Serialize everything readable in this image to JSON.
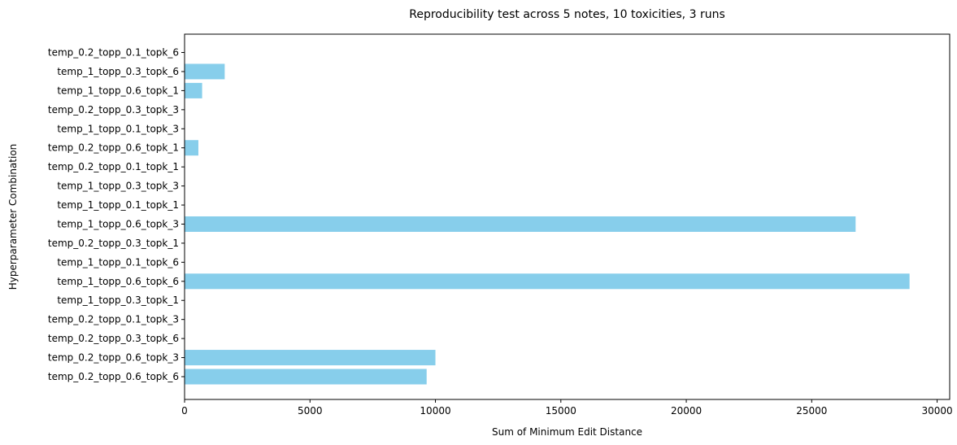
{
  "chart_data": {
    "type": "bar",
    "orientation": "horizontal",
    "title": "Reproducibility test across 5 notes, 10 toxicities, 3 runs",
    "xlabel": "Sum of Minimum Edit Distance",
    "ylabel": "Hyperparameter Combination",
    "xlim": [
      0,
      30500
    ],
    "xticks": [
      0,
      5000,
      10000,
      15000,
      20000,
      25000,
      30000
    ],
    "grid": false,
    "bar_color": "#87CEEB",
    "categories": [
      "temp_0.2_topp_0.6_topk_6",
      "temp_0.2_topp_0.6_topk_3",
      "temp_0.2_topp_0.3_topk_6",
      "temp_0.2_topp_0.1_topk_3",
      "temp_1_topp_0.3_topk_1",
      "temp_1_topp_0.6_topk_6",
      "temp_1_topp_0.1_topk_6",
      "temp_0.2_topp_0.3_topk_1",
      "temp_1_topp_0.6_topk_3",
      "temp_1_topp_0.1_topk_1",
      "temp_1_topp_0.3_topk_3",
      "temp_0.2_topp_0.1_topk_1",
      "temp_0.2_topp_0.6_topk_1",
      "temp_1_topp_0.1_topk_3",
      "temp_0.2_topp_0.3_topk_3",
      "temp_1_topp_0.6_topk_1",
      "temp_1_topp_0.3_topk_6",
      "temp_0.2_topp_0.1_topk_6"
    ],
    "values": [
      9650,
      10000,
      0,
      0,
      0,
      28900,
      0,
      0,
      26750,
      0,
      0,
      0,
      550,
      0,
      0,
      700,
      1600,
      0
    ]
  }
}
